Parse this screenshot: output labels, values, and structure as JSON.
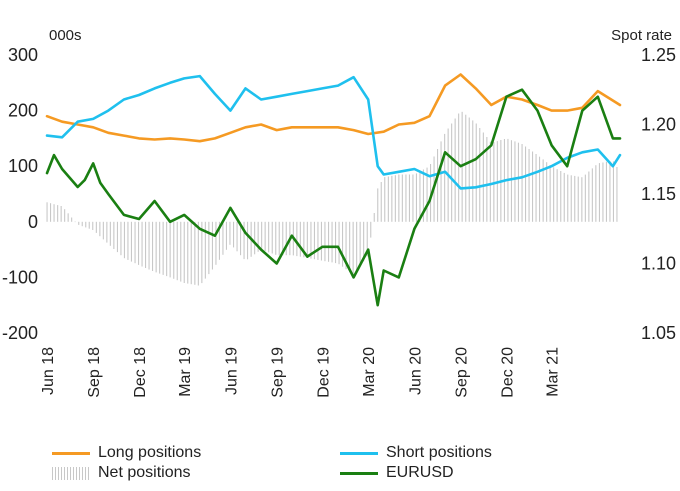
{
  "chart_data": {
    "type": "line",
    "left_axis_unit": "000s",
    "right_axis_unit": "Spot rate",
    "left_axis": {
      "min": -200,
      "max": 300,
      "ticks": [
        300,
        200,
        100,
        0,
        -100,
        -200
      ]
    },
    "right_axis": {
      "min": 1.05,
      "max": 1.25,
      "ticks": [
        "1.25",
        "1.20",
        "1.15",
        "1.10",
        "1.05"
      ]
    },
    "x_axis": {
      "start": "2018-06-01",
      "end": "2021-07-31",
      "tick_labels": [
        {
          "label": "Jun 18",
          "date": "2018-06-01"
        },
        {
          "label": "Sep 18",
          "date": "2018-09-01"
        },
        {
          "label": "Dec 18",
          "date": "2018-12-01"
        },
        {
          "label": "Mar 19",
          "date": "2019-03-01"
        },
        {
          "label": "Jun 19",
          "date": "2019-06-01"
        },
        {
          "label": "Sep 19",
          "date": "2019-09-01"
        },
        {
          "label": "Dec 19",
          "date": "2019-12-01"
        },
        {
          "label": "Mar 20",
          "date": "2020-03-01"
        },
        {
          "label": "Jun 20",
          "date": "2020-06-01"
        },
        {
          "label": "Sep 20",
          "date": "2020-09-01"
        },
        {
          "label": "Dec 20",
          "date": "2020-12-01"
        },
        {
          "label": "Mar 21",
          "date": "2021-03-01"
        }
      ]
    },
    "grid": false,
    "legend_position": "bottom",
    "series": [
      {
        "name": "Long positions",
        "axis": "left",
        "kind": "line",
        "color": "#F59A23",
        "points": [
          [
            "2018-06-01",
            190
          ],
          [
            "2018-07-01",
            180
          ],
          [
            "2018-08-01",
            175
          ],
          [
            "2018-09-01",
            170
          ],
          [
            "2018-10-01",
            160
          ],
          [
            "2018-11-01",
            155
          ],
          [
            "2018-12-01",
            150
          ],
          [
            "2019-01-01",
            148
          ],
          [
            "2019-02-01",
            150
          ],
          [
            "2019-03-01",
            148
          ],
          [
            "2019-04-01",
            145
          ],
          [
            "2019-05-01",
            150
          ],
          [
            "2019-06-01",
            160
          ],
          [
            "2019-07-01",
            170
          ],
          [
            "2019-08-01",
            175
          ],
          [
            "2019-09-01",
            165
          ],
          [
            "2019-10-01",
            170
          ],
          [
            "2019-11-01",
            170
          ],
          [
            "2019-12-01",
            170
          ],
          [
            "2020-01-01",
            170
          ],
          [
            "2020-02-01",
            165
          ],
          [
            "2020-03-01",
            158
          ],
          [
            "2020-04-01",
            162
          ],
          [
            "2020-05-01",
            175
          ],
          [
            "2020-06-01",
            178
          ],
          [
            "2020-07-01",
            190
          ],
          [
            "2020-08-01",
            245
          ],
          [
            "2020-09-01",
            265
          ],
          [
            "2020-10-01",
            240
          ],
          [
            "2020-11-01",
            210
          ],
          [
            "2020-12-01",
            225
          ],
          [
            "2021-01-01",
            220
          ],
          [
            "2021-02-01",
            210
          ],
          [
            "2021-03-01",
            200
          ],
          [
            "2021-04-01",
            200
          ],
          [
            "2021-05-01",
            205
          ],
          [
            "2021-06-01",
            235
          ],
          [
            "2021-07-15",
            210
          ]
        ]
      },
      {
        "name": "Short positions",
        "axis": "left",
        "kind": "line",
        "color": "#1FC0EE",
        "points": [
          [
            "2018-06-01",
            155
          ],
          [
            "2018-07-01",
            152
          ],
          [
            "2018-08-01",
            180
          ],
          [
            "2018-09-01",
            185
          ],
          [
            "2018-10-01",
            200
          ],
          [
            "2018-11-01",
            220
          ],
          [
            "2018-12-01",
            228
          ],
          [
            "2019-01-01",
            240
          ],
          [
            "2019-02-01",
            250
          ],
          [
            "2019-03-01",
            258
          ],
          [
            "2019-04-01",
            262
          ],
          [
            "2019-05-01",
            230
          ],
          [
            "2019-06-01",
            200
          ],
          [
            "2019-07-01",
            240
          ],
          [
            "2019-08-01",
            220
          ],
          [
            "2019-09-01",
            225
          ],
          [
            "2019-10-01",
            230
          ],
          [
            "2019-11-01",
            235
          ],
          [
            "2019-12-01",
            240
          ],
          [
            "2020-01-01",
            245
          ],
          [
            "2020-02-01",
            260
          ],
          [
            "2020-03-01",
            220
          ],
          [
            "2020-03-20",
            100
          ],
          [
            "2020-04-01",
            85
          ],
          [
            "2020-05-01",
            90
          ],
          [
            "2020-06-01",
            95
          ],
          [
            "2020-07-01",
            82
          ],
          [
            "2020-08-01",
            90
          ],
          [
            "2020-09-01",
            60
          ],
          [
            "2020-10-01",
            62
          ],
          [
            "2020-11-01",
            68
          ],
          [
            "2020-12-01",
            75
          ],
          [
            "2021-01-01",
            80
          ],
          [
            "2021-02-01",
            90
          ],
          [
            "2021-03-01",
            100
          ],
          [
            "2021-04-01",
            115
          ],
          [
            "2021-05-01",
            125
          ],
          [
            "2021-06-01",
            130
          ],
          [
            "2021-07-01",
            100
          ],
          [
            "2021-07-15",
            120
          ]
        ]
      },
      {
        "name": "EURUSD",
        "axis": "right",
        "kind": "line",
        "color": "#1A7F12",
        "points": [
          [
            "2018-06-01",
            1.165
          ],
          [
            "2018-06-15",
            1.178
          ],
          [
            "2018-07-01",
            1.168
          ],
          [
            "2018-08-01",
            1.155
          ],
          [
            "2018-08-15",
            1.16
          ],
          [
            "2018-09-01",
            1.172
          ],
          [
            "2018-09-15",
            1.158
          ],
          [
            "2018-10-01",
            1.15
          ],
          [
            "2018-11-01",
            1.135
          ],
          [
            "2018-12-01",
            1.132
          ],
          [
            "2019-01-01",
            1.145
          ],
          [
            "2019-02-01",
            1.13
          ],
          [
            "2019-03-01",
            1.135
          ],
          [
            "2019-04-01",
            1.125
          ],
          [
            "2019-05-01",
            1.12
          ],
          [
            "2019-06-01",
            1.14
          ],
          [
            "2019-07-01",
            1.122
          ],
          [
            "2019-08-01",
            1.11
          ],
          [
            "2019-09-01",
            1.1
          ],
          [
            "2019-10-01",
            1.12
          ],
          [
            "2019-11-01",
            1.105
          ],
          [
            "2019-12-01",
            1.112
          ],
          [
            "2020-01-01",
            1.112
          ],
          [
            "2020-02-01",
            1.09
          ],
          [
            "2020-03-01",
            1.11
          ],
          [
            "2020-03-20",
            1.07
          ],
          [
            "2020-04-01",
            1.095
          ],
          [
            "2020-05-01",
            1.09
          ],
          [
            "2020-06-01",
            1.125
          ],
          [
            "2020-07-01",
            1.145
          ],
          [
            "2020-08-01",
            1.18
          ],
          [
            "2020-09-01",
            1.17
          ],
          [
            "2020-10-01",
            1.175
          ],
          [
            "2020-11-01",
            1.185
          ],
          [
            "2020-12-01",
            1.22
          ],
          [
            "2021-01-01",
            1.225
          ],
          [
            "2021-02-01",
            1.21
          ],
          [
            "2021-03-01",
            1.185
          ],
          [
            "2021-04-01",
            1.17
          ],
          [
            "2021-05-01",
            1.21
          ],
          [
            "2021-06-01",
            1.22
          ],
          [
            "2021-07-01",
            1.19
          ],
          [
            "2021-07-15",
            1.19
          ]
        ]
      },
      {
        "name": "Net positions",
        "axis": "left",
        "kind": "bars",
        "color": "#C8C8C8",
        "points": [
          [
            "2018-06-01",
            35
          ],
          [
            "2018-07-01",
            28
          ],
          [
            "2018-08-01",
            -5
          ],
          [
            "2018-09-01",
            -15
          ],
          [
            "2018-10-01",
            -40
          ],
          [
            "2018-11-01",
            -65
          ],
          [
            "2018-12-01",
            -78
          ],
          [
            "2019-01-01",
            -90
          ],
          [
            "2019-02-01",
            -100
          ],
          [
            "2019-03-01",
            -110
          ],
          [
            "2019-04-01",
            -115
          ],
          [
            "2019-05-01",
            -80
          ],
          [
            "2019-06-01",
            -40
          ],
          [
            "2019-07-01",
            -70
          ],
          [
            "2019-08-01",
            -50
          ],
          [
            "2019-09-01",
            -60
          ],
          [
            "2019-10-01",
            -60
          ],
          [
            "2019-11-01",
            -65
          ],
          [
            "2019-12-01",
            -70
          ],
          [
            "2020-01-01",
            -75
          ],
          [
            "2020-02-01",
            -95
          ],
          [
            "2020-03-01",
            -60
          ],
          [
            "2020-03-20",
            60
          ],
          [
            "2020-04-01",
            80
          ],
          [
            "2020-05-01",
            85
          ],
          [
            "2020-06-01",
            85
          ],
          [
            "2020-07-01",
            100
          ],
          [
            "2020-08-01",
            160
          ],
          [
            "2020-09-01",
            200
          ],
          [
            "2020-10-01",
            178
          ],
          [
            "2020-11-01",
            142
          ],
          [
            "2020-12-01",
            150
          ],
          [
            "2021-01-01",
            140
          ],
          [
            "2021-02-01",
            120
          ],
          [
            "2021-03-01",
            100
          ],
          [
            "2021-04-01",
            85
          ],
          [
            "2021-05-01",
            80
          ],
          [
            "2021-06-01",
            105
          ],
          [
            "2021-07-01",
            110
          ],
          [
            "2021-07-15",
            90
          ]
        ]
      }
    ]
  }
}
